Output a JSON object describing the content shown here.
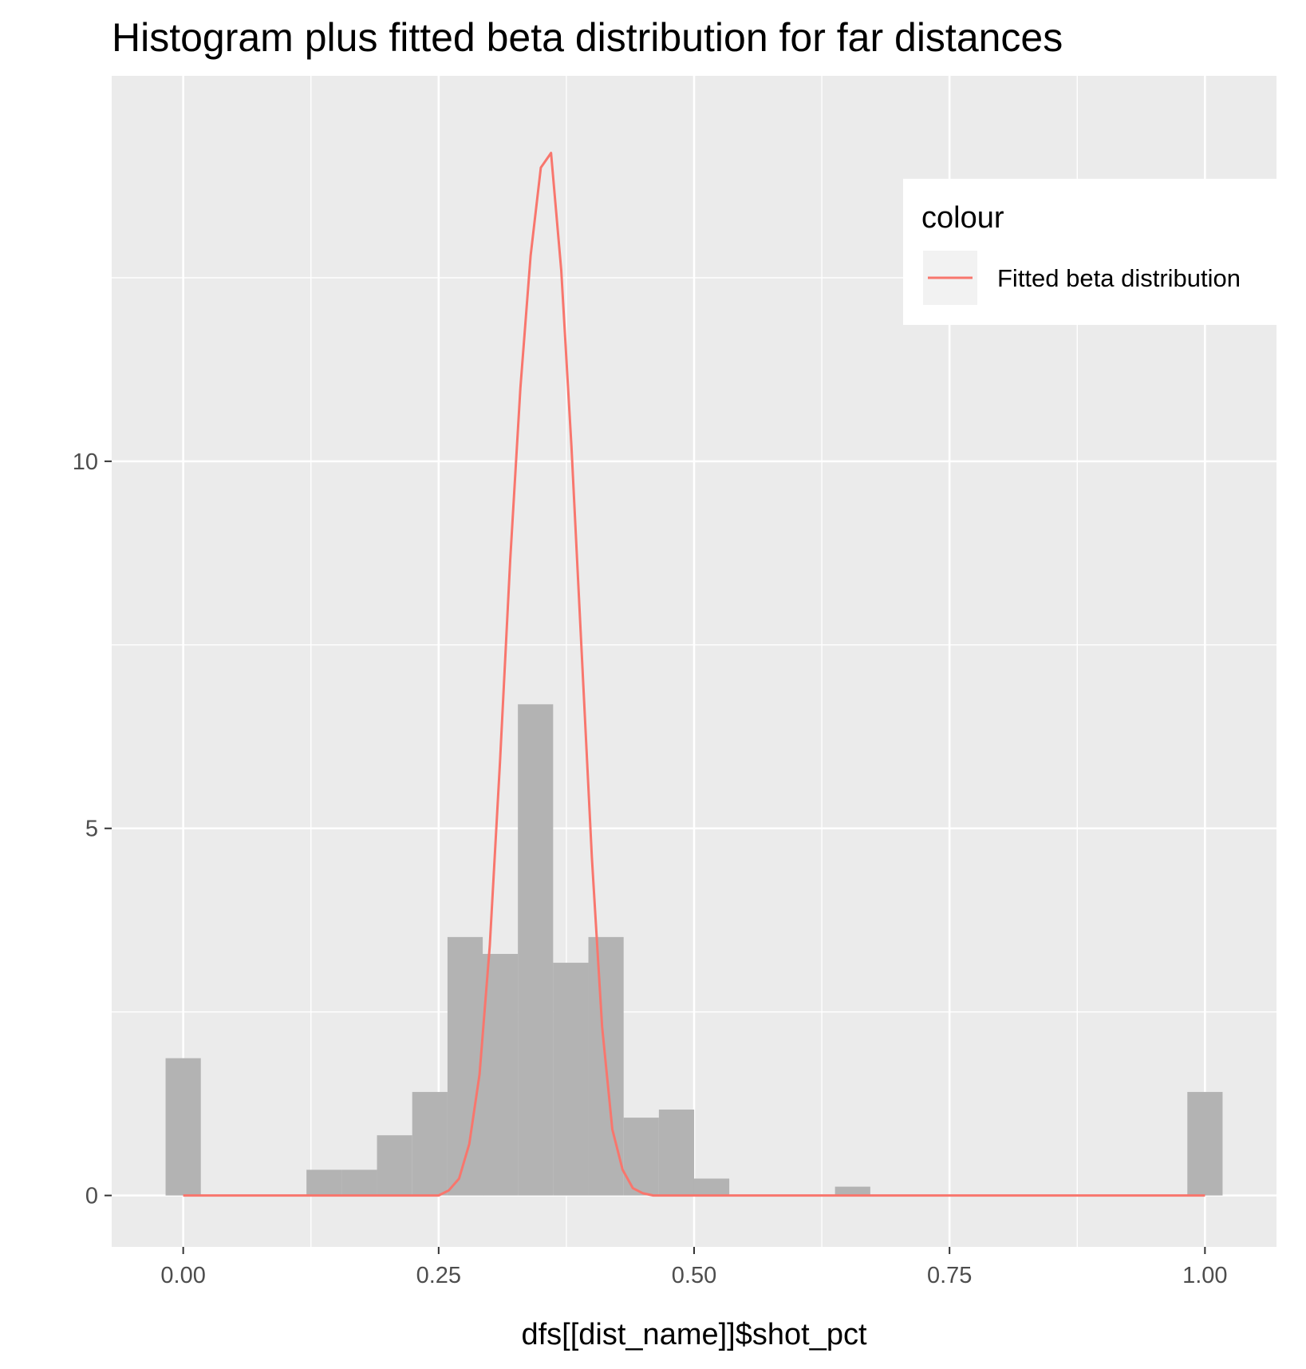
{
  "chart_data": {
    "type": "bar",
    "title": "Histogram plus fitted beta distribution for far distances",
    "xlabel": "dfs[[dist_name]]$shot_pct",
    "ylabel": "",
    "xlim": [
      -0.07,
      1.07
    ],
    "ylim": [
      -0.7,
      15.25
    ],
    "x_ticks": [
      {
        "value": 0.0,
        "label": "0.00"
      },
      {
        "value": 0.25,
        "label": "0.25"
      },
      {
        "value": 0.5,
        "label": "0.50"
      },
      {
        "value": 0.75,
        "label": "0.75"
      },
      {
        "value": 1.0,
        "label": "1.00"
      }
    ],
    "y_ticks": [
      {
        "value": 0,
        "label": "0"
      },
      {
        "value": 5,
        "label": "5"
      },
      {
        "value": 10,
        "label": "10"
      }
    ],
    "grid": true,
    "histogram": {
      "bin_width": 0.0345,
      "bins": [
        {
          "x": 0.0,
          "height": 1.87
        },
        {
          "x": 0.1379,
          "height": 0.35
        },
        {
          "x": 0.1724,
          "height": 0.35
        },
        {
          "x": 0.2069,
          "height": 0.82
        },
        {
          "x": 0.2414,
          "height": 1.41
        },
        {
          "x": 0.2759,
          "height": 3.52
        },
        {
          "x": 0.3103,
          "height": 3.29
        },
        {
          "x": 0.3448,
          "height": 6.69
        },
        {
          "x": 0.3793,
          "height": 3.17
        },
        {
          "x": 0.4138,
          "height": 3.52
        },
        {
          "x": 0.4483,
          "height": 1.06
        },
        {
          "x": 0.4828,
          "height": 1.17
        },
        {
          "x": 0.5172,
          "height": 0.23
        },
        {
          "x": 0.6552,
          "height": 0.12
        },
        {
          "x": 1.0,
          "height": 1.41
        }
      ],
      "fill": "#b3b3b3"
    },
    "series": [
      {
        "name": "Fitted beta distribution",
        "color": "#f8766d",
        "x": [
          0.0,
          0.25,
          0.26,
          0.27,
          0.28,
          0.29,
          0.3,
          0.31,
          0.32,
          0.33,
          0.34,
          0.35,
          0.36,
          0.37,
          0.38,
          0.39,
          0.4,
          0.41,
          0.42,
          0.43,
          0.44,
          0.45,
          0.46,
          1.0
        ],
        "y": [
          0.0,
          0.0,
          0.07,
          0.23,
          0.7,
          1.65,
          3.4,
          5.9,
          8.65,
          11.0,
          12.8,
          14.0,
          14.2,
          12.6,
          10.2,
          7.4,
          4.6,
          2.3,
          0.9,
          0.35,
          0.1,
          0.03,
          0.0,
          0.0
        ]
      }
    ],
    "legend": {
      "title": "colour",
      "position": "right-inside-top",
      "entries": [
        {
          "label": "Fitted beta distribution",
          "color": "#f8766d"
        }
      ]
    },
    "colors": {
      "panel_background": "#ebebeb",
      "grid": "#ffffff",
      "bar_fill": "#b3b3b3",
      "line": "#f8766d"
    }
  }
}
